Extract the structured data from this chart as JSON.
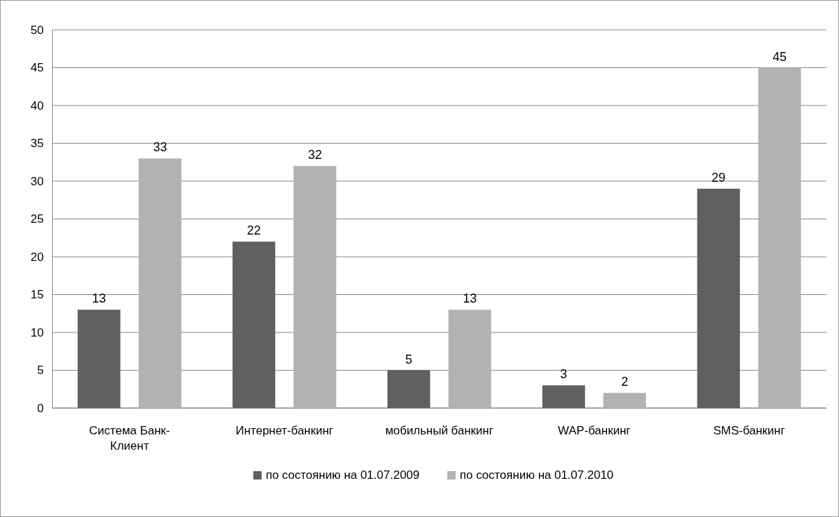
{
  "chart_data": {
    "type": "bar",
    "categories": [
      "Система Банк-Клиент",
      "Интернет-банкинг",
      "мобильный банкинг",
      "WAP-банкинг",
      "SMS-банкинг"
    ],
    "series": [
      {
        "name": "по состоянию на 01.07.2009",
        "color": "#606060",
        "values": [
          13,
          22,
          5,
          3,
          29
        ]
      },
      {
        "name": "по состоянию на 01.07.2010",
        "color": "#b2b2b2",
        "values": [
          33,
          32,
          13,
          2,
          45
        ]
      }
    ],
    "ylim": [
      0,
      50
    ],
    "yticks": [
      0,
      5,
      10,
      15,
      20,
      25,
      30,
      35,
      40,
      45,
      50
    ],
    "grid": "y",
    "data_labels": true,
    "legend": "bottom"
  }
}
